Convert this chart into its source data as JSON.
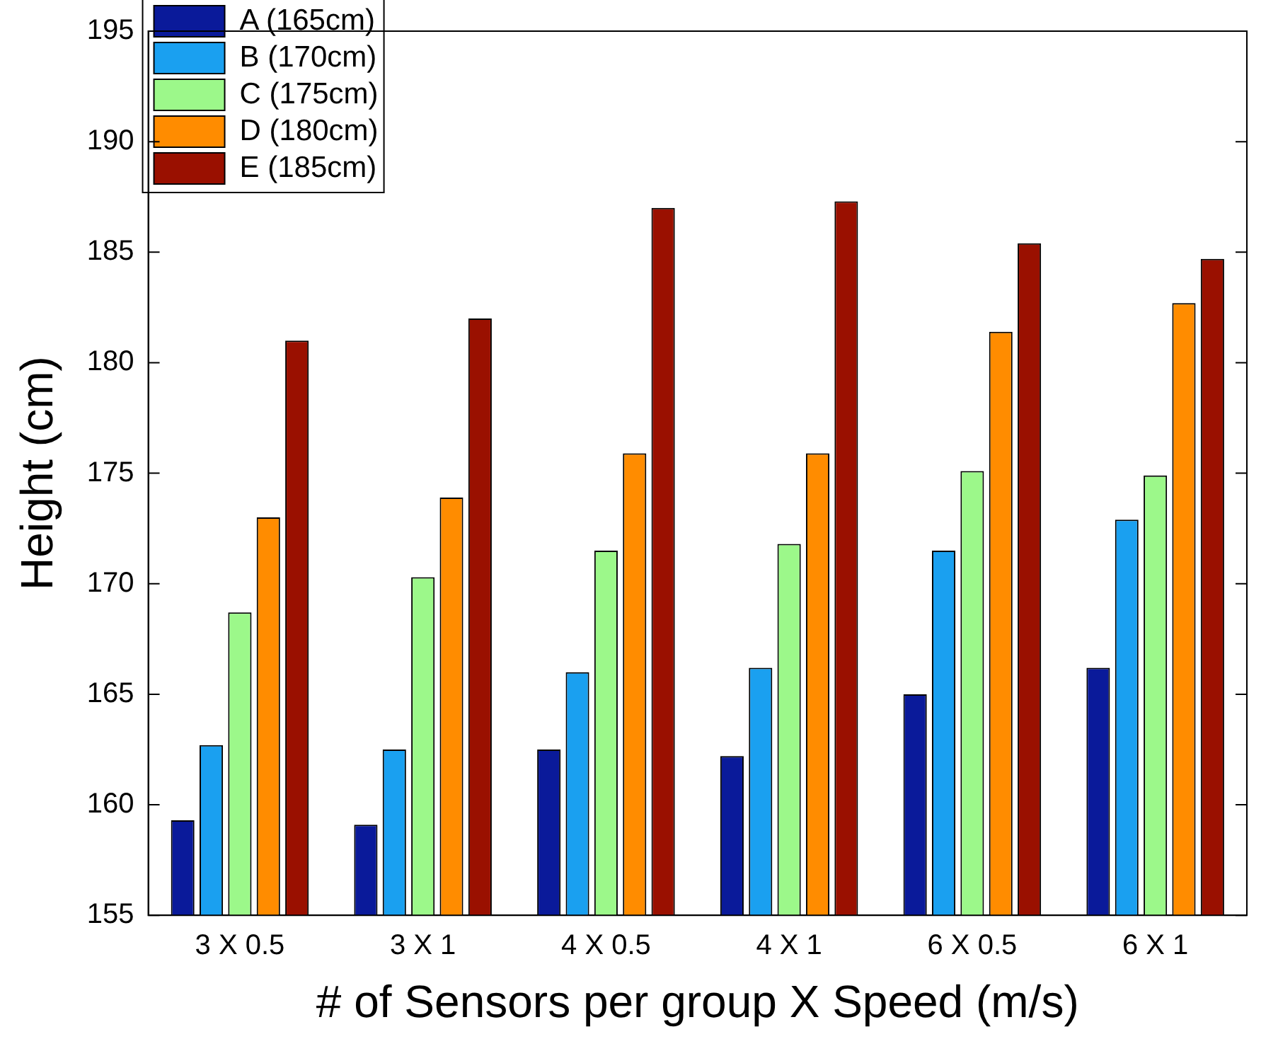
{
  "chart_data": {
    "type": "bar",
    "xlabel": "# of Sensors per group X Speed (m/s)",
    "ylabel": "Height (cm)",
    "categories": [
      "3 X 0.5",
      "3 X 1",
      "4 X 0.5",
      "4 X 1",
      "6 X 0.5",
      "6 X 1"
    ],
    "series": [
      {
        "name": "A (165cm)",
        "color": "#0a1a9a",
        "values": [
          159.3,
          159.1,
          162.5,
          162.2,
          165,
          166.2
        ]
      },
      {
        "name": "B (170cm)",
        "color": "#1aa0f0",
        "values": [
          162.7,
          162.5,
          166,
          166.2,
          171.5,
          172.9
        ]
      },
      {
        "name": "C (175cm)",
        "color": "#9cf88a",
        "values": [
          168.7,
          170.3,
          171.5,
          171.8,
          175.1,
          174.9
        ]
      },
      {
        "name": "D (180cm)",
        "color": "#ff8c00",
        "values": [
          173,
          173.9,
          175.9,
          175.9,
          181.4,
          182.7
        ]
      },
      {
        "name": "E (185cm)",
        "color": "#9a1000",
        "values": [
          181,
          182,
          187,
          187.3,
          185.4,
          184.7
        ]
      }
    ],
    "ylim": [
      155,
      195
    ],
    "yticks": [
      155,
      160,
      165,
      170,
      175,
      180,
      185,
      190,
      195
    ],
    "grid": false,
    "legend": "top left"
  }
}
